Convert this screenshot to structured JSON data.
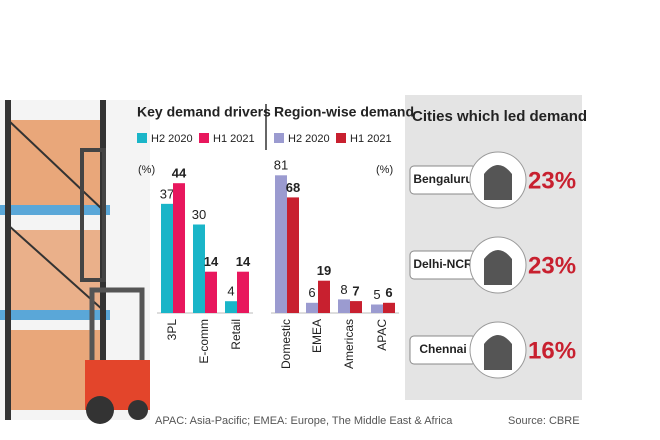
{
  "chart_data": [
    {
      "type": "bar",
      "title": "Key demand drivers",
      "unit_label": "(%)",
      "categories": [
        "3PL",
        "E-comm",
        "Retail"
      ],
      "series": [
        {
          "name": "H2 2020",
          "color": "#1ab5c8",
          "values": [
            37,
            30,
            4
          ]
        },
        {
          "name": "H1 2021",
          "color": "#e8175d",
          "values": [
            44,
            14,
            14
          ]
        }
      ]
    },
    {
      "type": "bar",
      "title": "Region-wise demand",
      "unit_label": "(%)",
      "categories": [
        "Domestic",
        "EMEA",
        "Americas",
        "APAC"
      ],
      "series": [
        {
          "name": "H2 2020",
          "color": "#9b9bd0",
          "values": [
            81,
            6,
            8,
            5
          ]
        },
        {
          "name": "H1 2021",
          "color": "#c8202f",
          "values": [
            68,
            19,
            7,
            6
          ]
        }
      ]
    }
  ],
  "cities": {
    "title": "Cities which led demand",
    "items": [
      {
        "label": "Bengaluru",
        "share": "23%"
      },
      {
        "label": "Delhi-NCR",
        "share": "23%"
      },
      {
        "label": "Chennai",
        "share": "16%"
      }
    ]
  },
  "footnote": "APAC: Asia-Pacific; EMEA: Europe, The Middle East & Africa",
  "source": "Source: CBRE"
}
